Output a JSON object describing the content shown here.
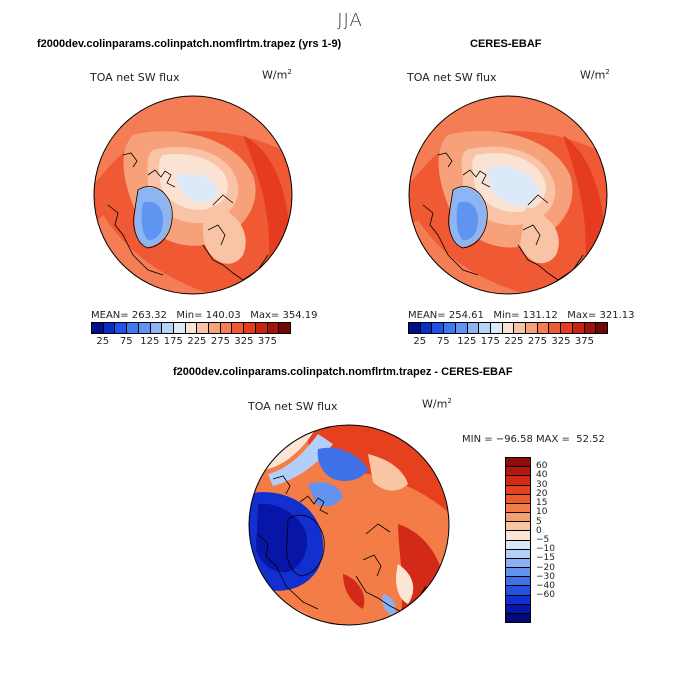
{
  "season": "JJA",
  "panels": [
    {
      "title": "f2000dev.colinparams.colinpatch.nomflrtm.trapez (yrs 1-9)",
      "variable_label": "TOA net SW flux",
      "units_base": "W/m",
      "units_exp": "2",
      "stats": {
        "mean_label": "MEAN=",
        "mean": "263.32",
        "min_label": "Min=",
        "min": "140.03",
        "max_label": "Max=",
        "max": "354.19"
      }
    },
    {
      "title": "CERES-EBAF",
      "variable_label": "TOA net SW flux",
      "units_base": "W/m",
      "units_exp": "2",
      "stats": {
        "mean_label": "MEAN=",
        "mean": "254.61",
        "min_label": "Min=",
        "min": "131.12",
        "max_label": "Max=",
        "max": "321.13"
      }
    }
  ],
  "abs_colorbar": {
    "tick_labels": [
      "25",
      "75",
      "125",
      "175",
      "225",
      "275",
      "325",
      "375"
    ],
    "colors": [
      "#000f8c",
      "#0a2ec8",
      "#1f52e6",
      "#3c78f0",
      "#5f95f0",
      "#8db5f2",
      "#b7d3f6",
      "#dbe9f8",
      "#fbe3d3",
      "#f9c3a6",
      "#f7a17b",
      "#f47d55",
      "#ef5a34",
      "#e53b1f",
      "#c82414",
      "#a1130d",
      "#700606"
    ]
  },
  "diff_panel": {
    "title": "f2000dev.colinparams.colinpatch.nomflrtm.trapez - CERES-EBAF",
    "variable_label": "TOA net SW flux",
    "units_base": "W/m",
    "units_exp": "2",
    "minmax": {
      "min_label": "MIN =",
      "min": "−96.58",
      "max_label": "MAX =",
      "max": "52.52"
    }
  },
  "diff_colorbar": {
    "tick_labels": [
      "60",
      "40",
      "30",
      "20",
      "15",
      "10",
      "5",
      "0",
      "−5",
      "−10",
      "−15",
      "−20",
      "−30",
      "−40",
      "−60"
    ],
    "colors": [
      "#8e0c0a",
      "#b4170f",
      "#d22a16",
      "#e6411f",
      "#ef5b2f",
      "#f47c47",
      "#f79f6e",
      "#f9c6a4",
      "#fbe6d6",
      "#dbe8f8",
      "#b3cff7",
      "#8bb1f3",
      "#6393ee",
      "#3f71e8",
      "#2551e0",
      "#1230cf",
      "#0816a8",
      "#020a78"
    ]
  },
  "chart_data": [
    {
      "type": "heatmap",
      "projection": "north-polar-stereographic",
      "title": "f2000dev.colinparams.colinpatch.nomflrtm.trapez (yrs 1-9)",
      "subtitle": "TOA net SW flux (W/m2), JJA",
      "stats": {
        "mean": 263.32,
        "min": 140.03,
        "max": 354.19
      },
      "contour_levels": [
        25,
        50,
        75,
        100,
        125,
        150,
        175,
        200,
        225,
        250,
        275,
        300,
        325,
        350,
        375
      ]
    },
    {
      "type": "heatmap",
      "projection": "north-polar-stereographic",
      "title": "CERES-EBAF",
      "subtitle": "TOA net SW flux (W/m2), JJA",
      "stats": {
        "mean": 254.61,
        "min": 131.12,
        "max": 321.13
      },
      "contour_levels": [
        25,
        50,
        75,
        100,
        125,
        150,
        175,
        200,
        225,
        250,
        275,
        300,
        325,
        350,
        375
      ]
    },
    {
      "type": "heatmap",
      "projection": "north-polar-stereographic",
      "title": "f2000dev.colinparams.colinpatch.nomflrtm.trapez - CERES-EBAF",
      "subtitle": "TOA net SW flux (W/m2), JJA difference",
      "stats": {
        "min": -96.58,
        "max": 52.52
      },
      "contour_levels": [
        -60,
        -40,
        -30,
        -20,
        -15,
        -10,
        -5,
        0,
        5,
        10,
        15,
        20,
        30,
        40,
        60
      ]
    }
  ]
}
